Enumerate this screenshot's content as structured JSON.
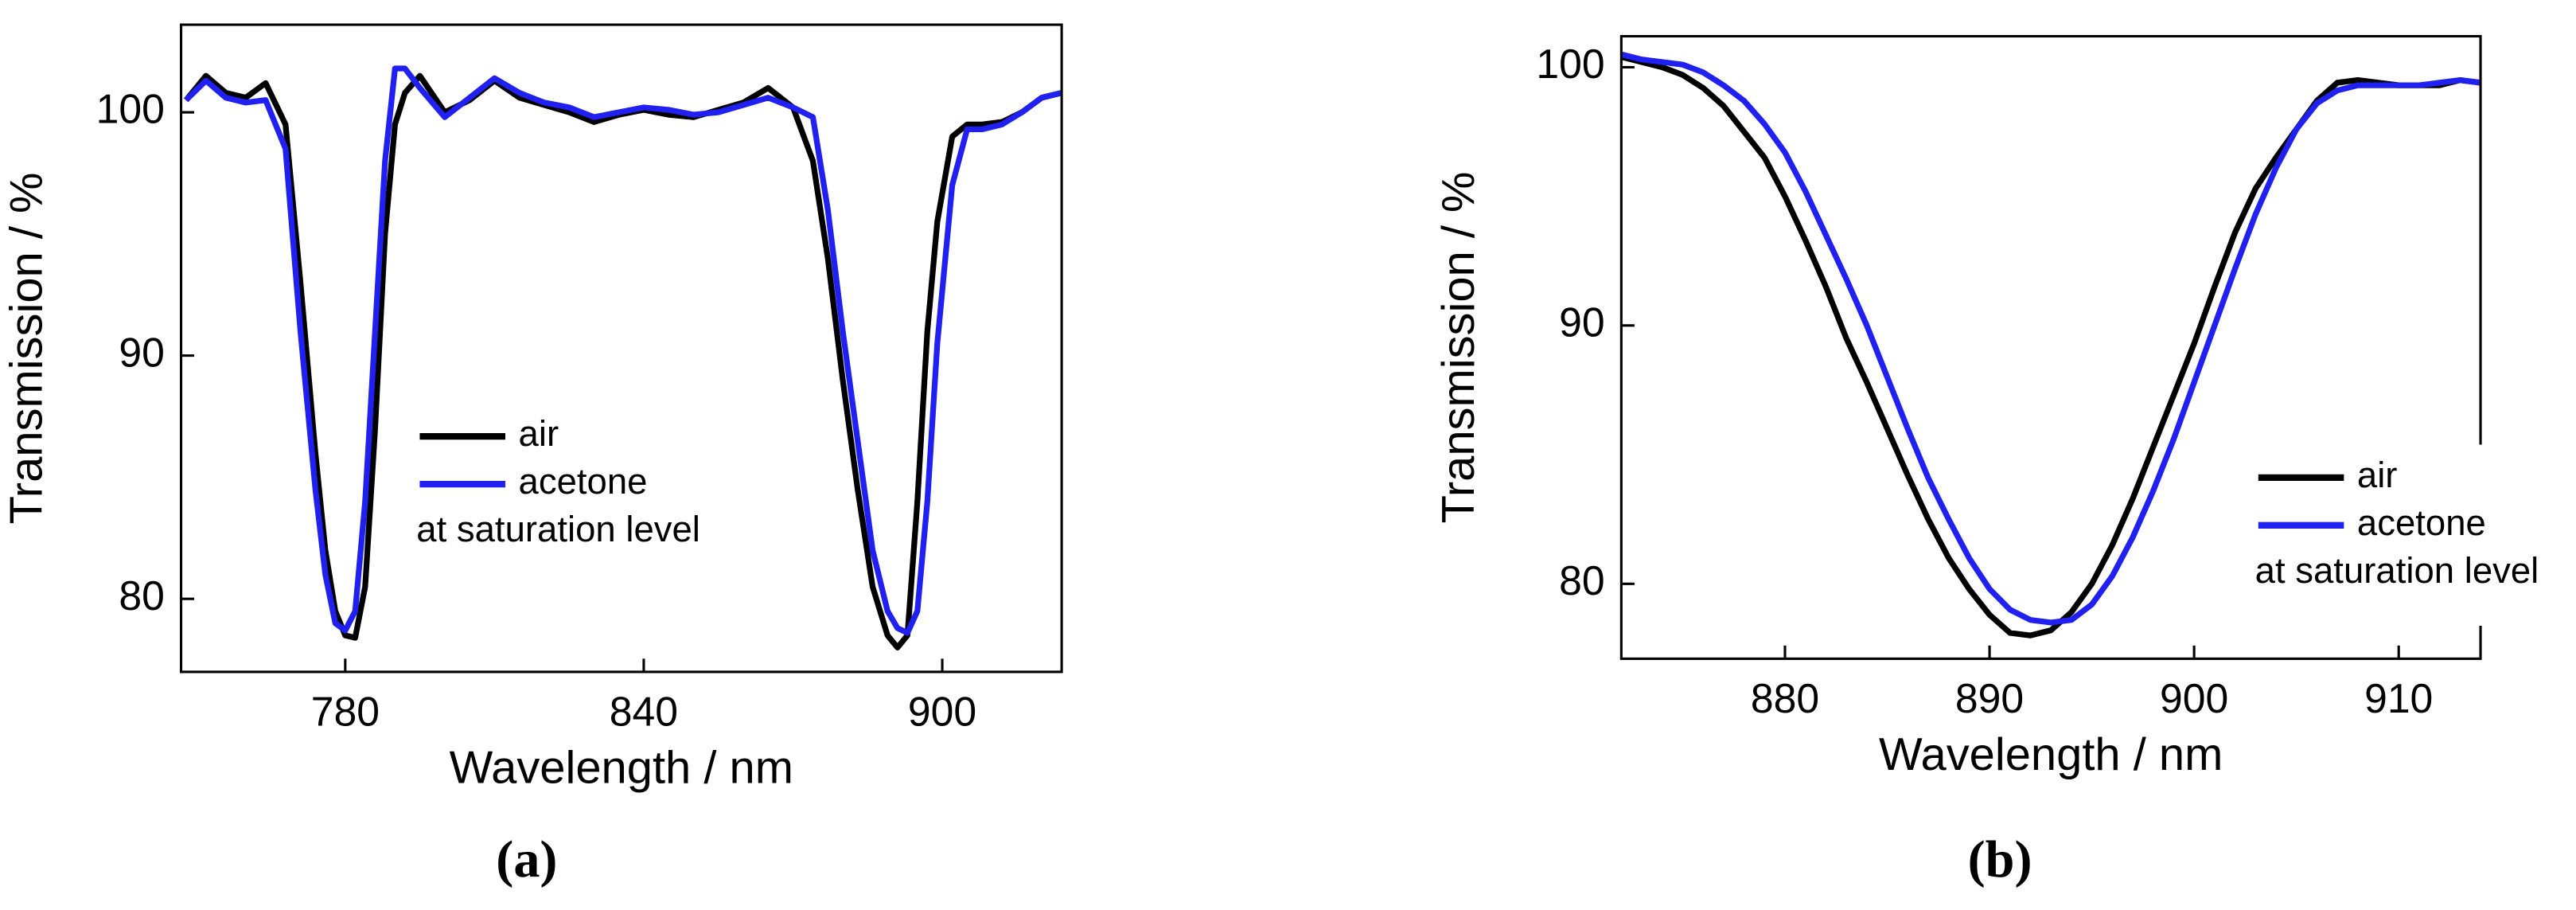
{
  "chart_data": [
    {
      "type": "line",
      "caption": "(a)",
      "x_label": "Wavelength / nm",
      "y_label": "Transmission / %",
      "x": [
        748,
        752,
        756,
        760,
        764,
        768,
        771,
        774,
        776,
        778,
        780,
        782,
        784,
        786,
        788,
        790,
        792,
        795,
        800,
        805,
        810,
        815,
        820,
        825,
        830,
        835,
        840,
        845,
        850,
        855,
        860,
        865,
        870,
        874,
        877,
        880,
        883,
        886,
        889,
        891,
        893,
        895,
        897,
        899,
        902,
        905,
        908,
        912,
        916,
        920,
        924
      ],
      "series": [
        {
          "name": "air",
          "color": "#000000",
          "values": [
            100.5,
            101.5,
            100.8,
            100.6,
            101.2,
            99.5,
            93,
            86,
            82,
            79.5,
            78.5,
            78.4,
            80.5,
            87,
            95,
            99.5,
            100.8,
            101.5,
            100,
            100.5,
            101.3,
            100.6,
            100.3,
            100,
            99.6,
            99.9,
            100.1,
            99.9,
            99.8,
            100.1,
            100.4,
            101,
            100.2,
            98,
            94,
            89,
            84.5,
            80.5,
            78.5,
            78,
            78.5,
            84,
            91,
            95.5,
            99,
            99.5,
            99.5,
            99.6,
            100,
            100.6,
            100.8
          ]
        },
        {
          "name": "acetone",
          "color": "#2020f0",
          "values": [
            100.5,
            101.3,
            100.6,
            100.4,
            100.5,
            98.5,
            91,
            84.5,
            81,
            79,
            78.7,
            79.5,
            84,
            91,
            98,
            101.8,
            101.8,
            101,
            99.8,
            100.6,
            101.4,
            100.8,
            100.4,
            100.2,
            99.8,
            100,
            100.2,
            100.1,
            99.9,
            100,
            100.3,
            100.6,
            100.2,
            99.8,
            96,
            91,
            86.5,
            82,
            79.5,
            78.8,
            78.6,
            79.5,
            84,
            90.5,
            97,
            99.3,
            99.3,
            99.5,
            100,
            100.6,
            100.8
          ]
        }
      ],
      "legend_note": "at saturation level",
      "legend": "center",
      "xlim": [
        747,
        924
      ],
      "xticks": [
        780,
        840,
        900
      ],
      "ylim": [
        77,
        103.6
      ],
      "yticks": [
        80,
        90,
        100
      ]
    },
    {
      "type": "line",
      "caption": "(b)",
      "x_label": "Wavelength / nm",
      "y_label": "Transmission / %",
      "x": [
        872,
        873,
        874,
        875,
        876,
        877,
        878,
        879,
        880,
        881,
        882,
        883,
        884,
        885,
        886,
        887,
        888,
        889,
        890,
        891,
        892,
        893,
        894,
        895,
        896,
        897,
        898,
        899,
        900,
        901,
        902,
        903,
        904,
        905,
        906,
        907,
        908,
        909,
        910,
        911,
        912,
        913,
        914
      ],
      "series": [
        {
          "name": "air",
          "color": "#000000",
          "values": [
            100.4,
            100.2,
            100,
            99.7,
            99.2,
            98.5,
            97.5,
            96.5,
            95,
            93.3,
            91.5,
            89.5,
            87.8,
            86,
            84.2,
            82.5,
            81,
            79.8,
            78.8,
            78.1,
            78,
            78.2,
            78.9,
            80,
            81.5,
            83.3,
            85.3,
            87.3,
            89.3,
            91.5,
            93.6,
            95.3,
            96.5,
            97.6,
            98.7,
            99.4,
            99.5,
            99.4,
            99.3,
            99.3,
            99.3,
            99.5,
            99.4
          ]
        },
        {
          "name": "acetone",
          "color": "#2020f0",
          "values": [
            100.5,
            100.3,
            100.2,
            100.1,
            99.8,
            99.3,
            98.7,
            97.8,
            96.7,
            95.2,
            93.5,
            91.8,
            90,
            88,
            86,
            84.1,
            82.5,
            81,
            79.8,
            79,
            78.6,
            78.5,
            78.6,
            79.2,
            80.3,
            81.8,
            83.6,
            85.6,
            87.8,
            90,
            92.2,
            94.3,
            96.1,
            97.6,
            98.6,
            99.1,
            99.3,
            99.3,
            99.3,
            99.3,
            99.4,
            99.5,
            99.4
          ]
        }
      ],
      "legend_note": "at saturation level",
      "legend": "lower right",
      "xlim": [
        872,
        914
      ],
      "xticks": [
        880,
        890,
        900,
        910
      ],
      "ylim": [
        77.1,
        101.2
      ],
      "yticks": [
        80,
        90,
        100
      ]
    }
  ]
}
